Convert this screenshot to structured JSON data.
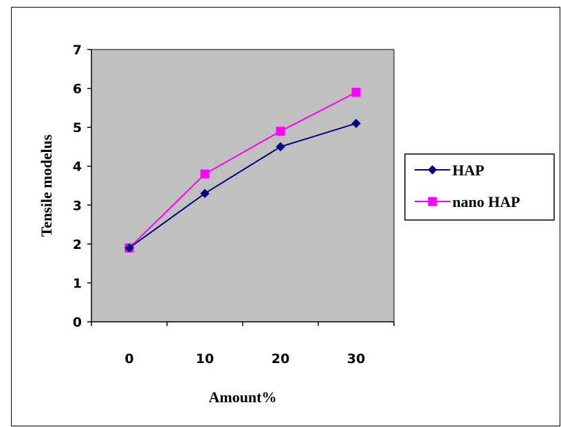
{
  "chart_data": {
    "type": "line",
    "categories": [
      "0",
      "10",
      "20",
      "30"
    ],
    "series": [
      {
        "name": "HAP",
        "values": [
          1.9,
          3.3,
          4.5,
          5.1
        ],
        "color": "#000080",
        "marker": "diamond"
      },
      {
        "name": "nano HAP",
        "values": [
          1.9,
          3.8,
          4.9,
          5.9
        ],
        "color": "#ff00ff",
        "marker": "square"
      }
    ],
    "xlabel": "Amount%",
    "ylabel": "Tensile modelus",
    "ylim": [
      0,
      7
    ],
    "yticks": [
      "0",
      "1",
      "2",
      "3",
      "4",
      "5",
      "6",
      "7"
    ],
    "plot_background": "#c0c0c0",
    "grid": false,
    "legend_position": "right"
  }
}
